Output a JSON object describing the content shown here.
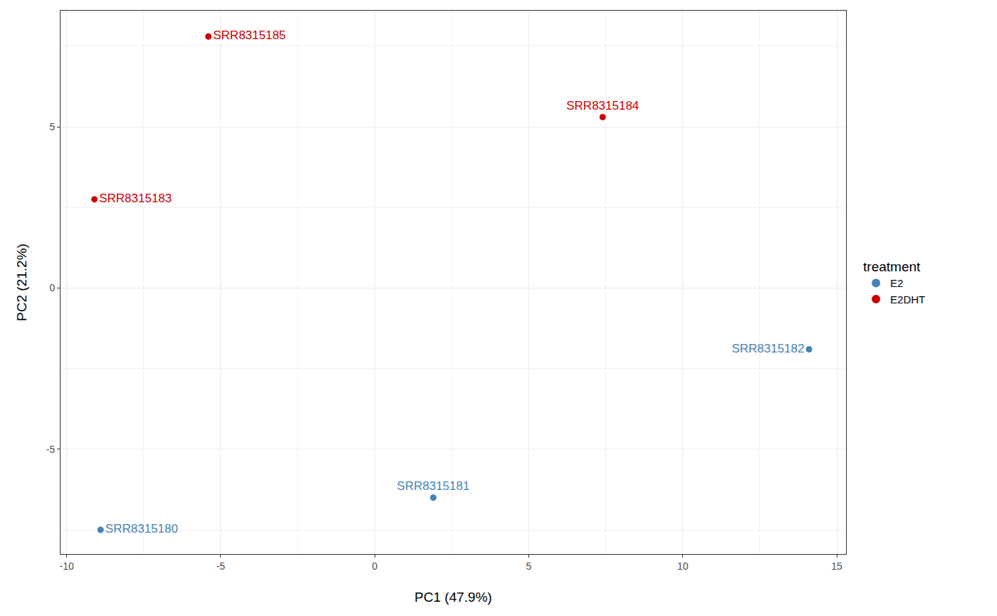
{
  "chart_data": {
    "type": "scatter",
    "x_label": "PC1 (47.9%)",
    "y_label": "PC2 (21.2%)",
    "legend_title": "treatment",
    "legend": "right",
    "grid": true,
    "xlim": [
      -10.2,
      15.3
    ],
    "ylim": [
      -8.25,
      8.6
    ],
    "xticks": [
      -10,
      -5,
      0,
      5,
      10,
      15
    ],
    "yticks": [
      -5,
      0,
      5
    ],
    "series": [
      {
        "name": "E2",
        "color": "#4682b4",
        "x": [
          -8.9,
          1.9,
          14.1
        ],
        "values": [
          -7.5,
          -6.5,
          -1.9
        ],
        "labels": [
          "SRR8315180",
          "SRR8315181",
          "SRR8315182"
        ]
      },
      {
        "name": "E2DHT",
        "color": "#cc0000",
        "x": [
          -9.1,
          7.4,
          -5.4
        ],
        "values": [
          2.75,
          5.3,
          7.8
        ],
        "labels": [
          "SRR8315183",
          "SRR8315184",
          "SRR8315185"
        ]
      }
    ]
  }
}
